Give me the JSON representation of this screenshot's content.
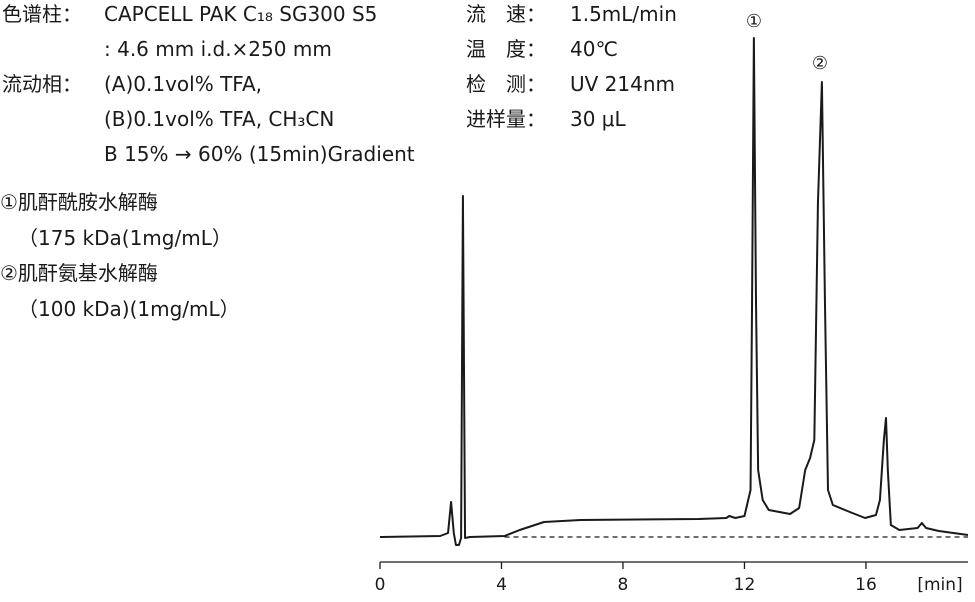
{
  "chart_data": {
    "type": "line",
    "conditions": {
      "left": [
        {
          "label": "色谱柱：",
          "lines": [
            "CAPCELL PAK C₁₈ SG300 S5",
            ": 4.6 mm i.d.×250 mm"
          ]
        },
        {
          "label": "流动相：",
          "lines": [
            "(A)0.1vol% TFA,",
            "(B)0.1vol% TFA, CH₃CN",
            "B 15% → 60% (15min)Gradient"
          ]
        }
      ],
      "right": [
        {
          "label": "流　速：",
          "text": "1.5mL/min"
        },
        {
          "label": "温　度：",
          "text": "40℃"
        },
        {
          "label": "检　测：",
          "text": "UV 214nm"
        },
        {
          "label": "进样量：",
          "text": "30 μL"
        }
      ]
    },
    "samples": [
      "①肌酐酰胺水解酶",
      "（175 kDa(1mg/mL）",
      "②肌酐氨基水解酶",
      "（100 kDa)(1mg/mL）"
    ],
    "peak_labels": [
      "①",
      "②"
    ],
    "x_label": "[min]",
    "xlim": [
      0,
      19.36
    ],
    "xticks": [
      0,
      4,
      8,
      12,
      16
    ],
    "ylim": [
      -4,
      104
    ],
    "series": [
      {
        "color": "#1a1a1a",
        "x": [
          0,
          1.98,
          2.24,
          2.34,
          2.43,
          2.5,
          2.6,
          2.67,
          2.73,
          2.8,
          2.96,
          4.1,
          4.6,
          5.4,
          6.6,
          10.5,
          11.4,
          11.5,
          11.7,
          12.0,
          12.2,
          12.25,
          12.31,
          12.38,
          12.45,
          12.6,
          12.8,
          13.5,
          13.8,
          14.0,
          14.16,
          14.3,
          14.42,
          14.55,
          14.65,
          14.75,
          14.91,
          15.47,
          15.97,
          16.33,
          16.46,
          16.59,
          16.66,
          16.72,
          16.82,
          17.1,
          17.7,
          17.84,
          17.98,
          18.4,
          19.36
        ],
        "values": [
          0,
          0.2,
          0.8,
          7,
          0.8,
          -1.6,
          -1.6,
          -0.2,
          68.2,
          -0.2,
          0,
          0.2,
          1.4,
          3,
          3.4,
          3.6,
          3.8,
          4.2,
          3.8,
          4.2,
          9.4,
          47,
          99.8,
          47,
          13.4,
          7.4,
          5.4,
          4.6,
          5.8,
          13.4,
          15.8,
          19.4,
          67,
          91,
          47,
          9.4,
          6.4,
          5,
          3.8,
          4.4,
          7.4,
          19.4,
          23.8,
          13.4,
          2.4,
          1.4,
          1.8,
          2.8,
          1.8,
          1.2,
          0.4
        ]
      },
      {
        "color": "#1a1a1a",
        "dash": true,
        "x": [
          4.1,
          19.36
        ],
        "values": [
          0,
          0
        ]
      }
    ]
  }
}
